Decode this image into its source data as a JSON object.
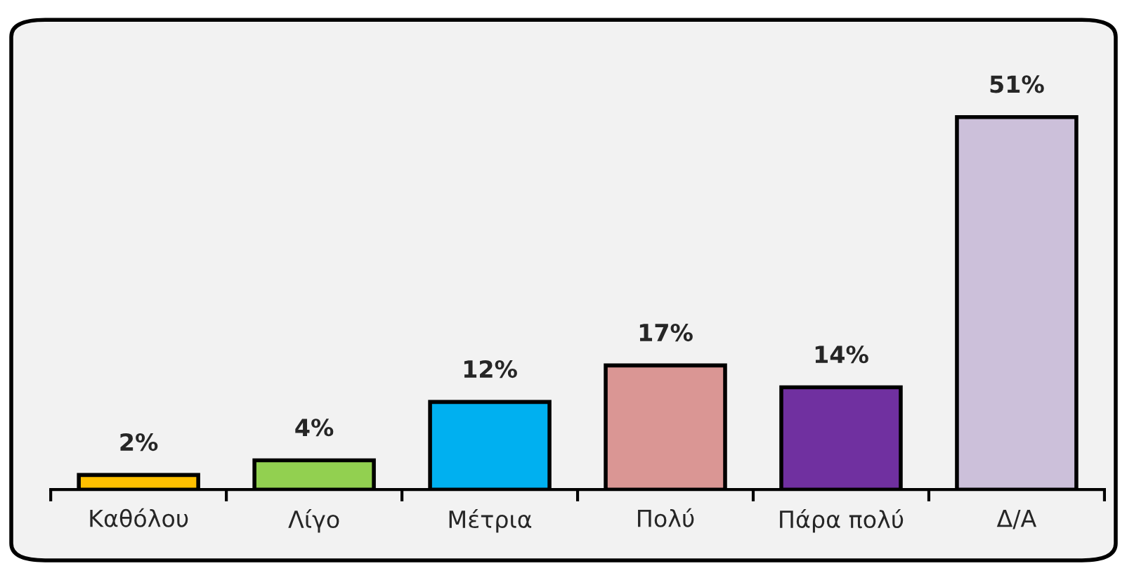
{
  "chart_data": {
    "type": "bar",
    "categories": [
      "Καθόλου",
      "Λίγο",
      "Μέτρια",
      "Πολύ",
      "Πάρα πολύ",
      "Δ/Α"
    ],
    "values": [
      2,
      4,
      12,
      17,
      14,
      51
    ],
    "colors": [
      "#ffc000",
      "#92d050",
      "#00b0f0",
      "#da9694",
      "#7030a0",
      "#ccc0da"
    ],
    "value_labels": [
      "2%",
      "4%",
      "12%",
      "17%",
      "14%",
      "51%"
    ],
    "grid": false,
    "legend": false
  }
}
